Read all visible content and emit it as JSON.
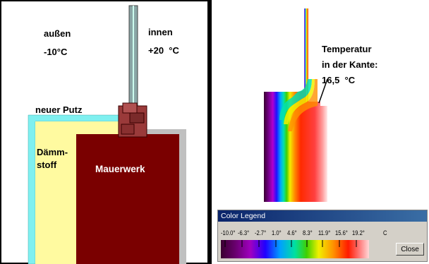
{
  "left": {
    "outside_label": "außen",
    "outside_temp": "-10°C",
    "inside_label": "innen",
    "inside_temp": "+20  °C",
    "plaster_label": "neuer Putz",
    "insulation_label_1": "Dämm-",
    "insulation_label_2": "stoff",
    "masonry_label": "Mauerwerk"
  },
  "right": {
    "temperature_label_1": "Temperatur",
    "temperature_label_2": "in der Kante:",
    "temperature_value": "16,5  °C"
  },
  "legend": {
    "title": "Color Legend",
    "ticks": [
      "-10.0°",
      "-6.3°",
      "-2.7°",
      "1.0°",
      "4.6°",
      "8.3°",
      "11.9°",
      "15.6°",
      "19.2°"
    ],
    "unit": "C",
    "close_label": "Close"
  },
  "colors": {
    "masonry": "#7a0000",
    "insulation": "#fffaa0",
    "plaster": "#7ff0f0",
    "window_frame": "#9a3a3a"
  }
}
